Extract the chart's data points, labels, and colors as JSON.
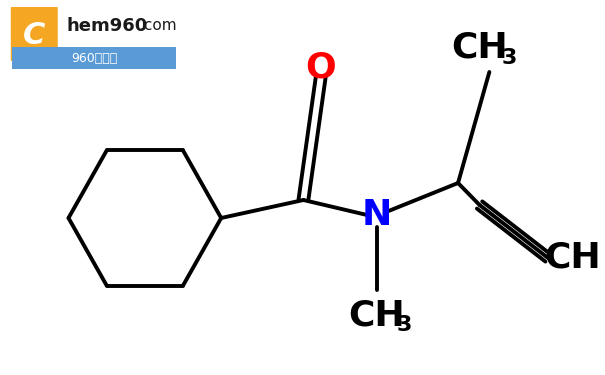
{
  "bg_color": "#ffffff",
  "lw": 2.8,
  "bond_color": "#000000",
  "atom_colors": {
    "O": "#ff0000",
    "N": "#0000ff",
    "C": "#000000"
  },
  "font_size_atom": 26,
  "font_size_sub": 16,
  "watermark": {
    "logo_color": "#F5A623",
    "bar_color": "#5B9BD5",
    "chem_text": "hem960",
    "com_text": ".com",
    "sub_text": "960化工网"
  }
}
